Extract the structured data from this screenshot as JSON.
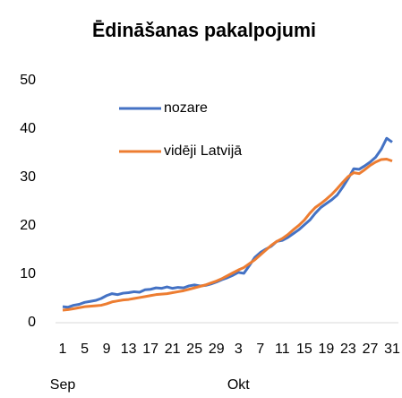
{
  "chart_data": {
    "type": "line",
    "title": "Ēdināšanas pakalpojumi",
    "categories": [
      1,
      null,
      null,
      null,
      5,
      null,
      null,
      null,
      9,
      null,
      null,
      null,
      13,
      null,
      null,
      null,
      17,
      null,
      null,
      null,
      21,
      null,
      null,
      null,
      25,
      null,
      null,
      null,
      29,
      null,
      null,
      null,
      3,
      null,
      null,
      null,
      7,
      null,
      null,
      null,
      11,
      null,
      null,
      null,
      15,
      null,
      null,
      null,
      19,
      null,
      null,
      null,
      23,
      null,
      null,
      null,
      27,
      null,
      null,
      null,
      31
    ],
    "x_group_labels": [
      "Sep",
      "Okt"
    ],
    "series": [
      {
        "name": "nozare",
        "color": "#4472c4",
        "values": [
          3.3,
          3.2,
          3.6,
          3.8,
          4.2,
          4.4,
          4.6,
          5.0,
          5.6,
          6.0,
          5.8,
          6.1,
          6.2,
          6.4,
          6.3,
          6.8,
          6.9,
          7.2,
          7.1,
          7.4,
          7.1,
          7.3,
          7.2,
          7.6,
          7.8,
          7.6,
          7.7,
          8.0,
          8.4,
          8.9,
          9.3,
          9.8,
          10.4,
          10.2,
          11.8,
          13.5,
          14.5,
          15.2,
          15.8,
          16.8,
          17.0,
          17.6,
          18.4,
          19.2,
          20.2,
          21.2,
          22.6,
          23.8,
          24.6,
          25.4,
          26.4,
          28.0,
          29.8,
          31.8,
          31.7,
          32.4,
          33.2,
          34.2,
          35.8,
          38.1,
          37.3
        ]
      },
      {
        "name": "vidēji Latvijā",
        "color": "#ed7d31",
        "values": [
          2.6,
          2.7,
          2.9,
          3.1,
          3.3,
          3.4,
          3.5,
          3.6,
          3.9,
          4.3,
          4.5,
          4.7,
          4.8,
          5.0,
          5.2,
          5.4,
          5.6,
          5.8,
          5.9,
          6.0,
          6.2,
          6.4,
          6.6,
          6.9,
          7.2,
          7.5,
          7.8,
          8.2,
          8.6,
          9.1,
          9.7,
          10.3,
          10.9,
          11.4,
          12.2,
          13.0,
          14.0,
          15.0,
          16.0,
          16.8,
          17.4,
          18.2,
          19.2,
          20.1,
          21.2,
          22.6,
          23.8,
          24.6,
          25.5,
          26.5,
          27.7,
          29.0,
          30.2,
          31.0,
          30.8,
          31.6,
          32.5,
          33.2,
          33.7,
          33.8,
          33.4
        ]
      }
    ],
    "ylim": [
      0,
      50
    ],
    "yticks": [
      0,
      10,
      20,
      30,
      40,
      50
    ],
    "grid": false
  }
}
